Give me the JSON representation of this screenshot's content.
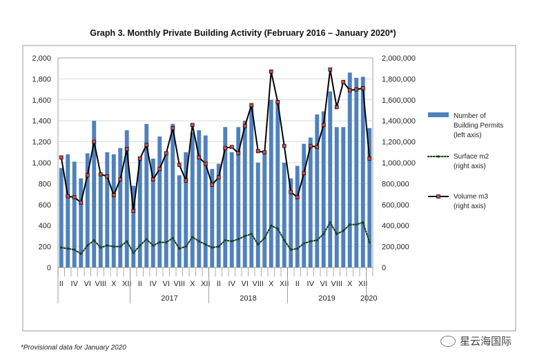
{
  "footnote": "*Provisional data for January 2020",
  "watermark": "星云海国际",
  "colors": {
    "bar": "#4f81bd",
    "line": "#000000",
    "marker": "#c0504d",
    "surface": "#1f3f1f"
  },
  "chart_data": {
    "type": "bar",
    "title": "Graph 3. Monthly Private Building Activity (February 2016 – January 2020*)",
    "left_axis": {
      "min": 0,
      "max": 2000,
      "ticks": [
        "0",
        "200",
        "400",
        "600",
        "800",
        "1,000",
        "1,200",
        "1,400",
        "1,600",
        "1,800",
        "2,000"
      ]
    },
    "right_axis": {
      "min": 0,
      "max": 2000000,
      "ticks": [
        "0",
        "200,000",
        "400,000",
        "600,000",
        "800,000",
        "1,000,000",
        "1,200,000",
        "1,400,000",
        "1,600,000",
        "1,800,000",
        "2,000,000"
      ]
    },
    "month_labels": [
      "II",
      "IV",
      "VI",
      "VIII",
      "X",
      "XII",
      "II",
      "IV",
      "VI",
      "VIII",
      "X",
      "XII",
      "II",
      "IV",
      "VI",
      "VIII",
      "X",
      "XII",
      "II",
      "IV",
      "VI",
      "VIII",
      "X",
      "XII"
    ],
    "year_labels": [
      "2017",
      "2018",
      "2019",
      "2020"
    ],
    "legend": [
      {
        "name": "Number of Building Permits (left axis)",
        "lines": [
          "Number of",
          "Building Permits",
          "(left axis)"
        ]
      },
      {
        "name": "Surface m2 (right axis)",
        "lines": [
          "Surface m2",
          "(right axis)"
        ]
      },
      {
        "name": "Volume m3 (right axis)",
        "lines": [
          "Volume m3",
          "(right axis)"
        ]
      }
    ],
    "series": [
      {
        "name": "Number of Building Permits",
        "axis": "left",
        "type": "bar",
        "values": [
          950,
          1080,
          1010,
          850,
          1090,
          1400,
          900,
          1100,
          1080,
          1140,
          1310,
          780,
          1060,
          1370,
          1040,
          1250,
          1100,
          1370,
          880,
          1100,
          1290,
          1310,
          1260,
          940,
          990,
          1340,
          1100,
          1340,
          1400,
          1550,
          1000,
          1100,
          1600,
          1580,
          1000,
          850,
          970,
          1180,
          1240,
          1460,
          1490,
          1680,
          1340,
          1340,
          1860,
          1810,
          1820,
          1330
        ]
      },
      {
        "name": "Surface m2",
        "axis": "right",
        "type": "line",
        "values": [
          190000,
          180000,
          170000,
          130000,
          210000,
          260000,
          190000,
          210000,
          200000,
          200000,
          250000,
          140000,
          210000,
          270000,
          210000,
          240000,
          240000,
          280000,
          180000,
          200000,
          290000,
          250000,
          220000,
          190000,
          200000,
          260000,
          250000,
          270000,
          300000,
          320000,
          220000,
          280000,
          400000,
          370000,
          260000,
          170000,
          180000,
          230000,
          250000,
          260000,
          320000,
          430000,
          320000,
          350000,
          410000,
          410000,
          430000,
          240000
        ]
      },
      {
        "name": "Volume m3",
        "axis": "right",
        "type": "line",
        "values": [
          1050000,
          680000,
          670000,
          620000,
          880000,
          1200000,
          890000,
          870000,
          690000,
          840000,
          1130000,
          540000,
          1040000,
          1170000,
          840000,
          940000,
          1090000,
          1330000,
          980000,
          830000,
          1360000,
          1050000,
          990000,
          790000,
          860000,
          1140000,
          1150000,
          1090000,
          1350000,
          1550000,
          1110000,
          1100000,
          1870000,
          1580000,
          1160000,
          720000,
          670000,
          900000,
          1160000,
          1150000,
          1360000,
          1890000,
          1530000,
          1770000,
          1690000,
          1700000,
          1710000,
          1040000
        ]
      }
    ]
  }
}
